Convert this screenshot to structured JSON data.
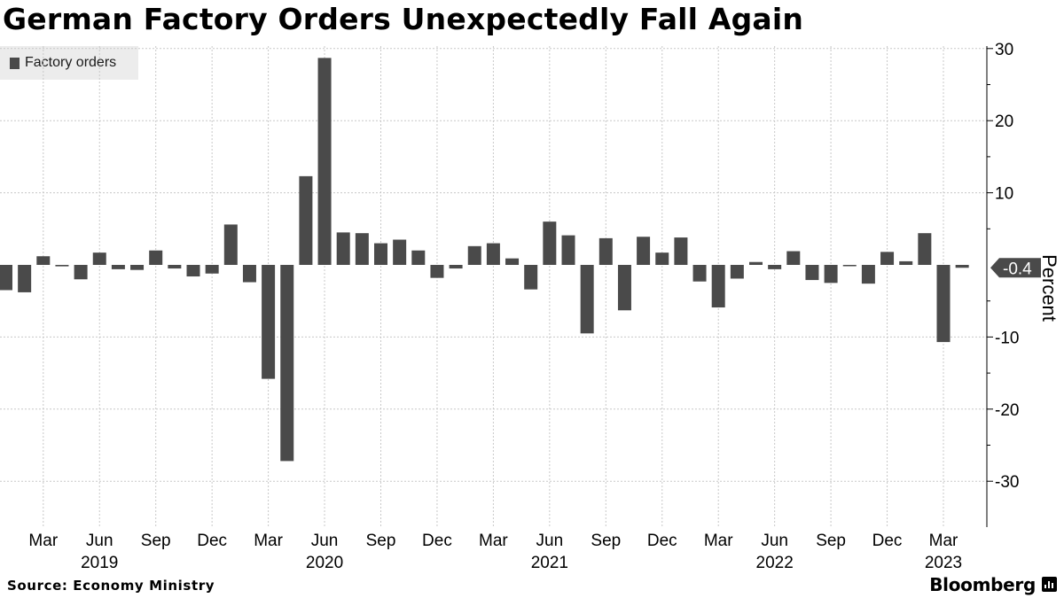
{
  "title": "German Factory Orders Unexpectedly Fall Again",
  "legend": {
    "label": "Factory orders",
    "color": "#4a4a4a"
  },
  "source": "Source: Economy Ministry",
  "brand": "Bloomberg",
  "chart_data": {
    "type": "bar",
    "title": "German Factory Orders Unexpectedly Fall Again",
    "ylabel": "Percent",
    "ylim": [
      -33.5,
      34
    ],
    "yticks": [
      30,
      20,
      10,
      -10,
      -20,
      -30
    ],
    "y_axis_side": "right",
    "grid": true,
    "legend_position": "top-left",
    "last_value_label": "-0.4",
    "x_tick_labels": [
      "Mar",
      "Jun",
      "Sep",
      "Dec",
      "Mar",
      "Jun",
      "Sep",
      "Dec",
      "Mar",
      "Jun",
      "Sep",
      "Dec",
      "Mar",
      "Jun",
      "Sep",
      "Dec",
      "Mar"
    ],
    "x_year_labels": [
      "2019",
      "2020",
      "2021",
      "2022",
      "2023"
    ],
    "series": [
      {
        "name": "Factory orders",
        "color": "#4a4a4a",
        "categories": [
          "2019-01",
          "2019-02",
          "2019-03",
          "2019-04",
          "2019-05",
          "2019-06",
          "2019-07",
          "2019-08",
          "2019-09",
          "2019-10",
          "2019-11",
          "2019-12",
          "2020-01",
          "2020-02",
          "2020-03",
          "2020-04",
          "2020-05",
          "2020-06",
          "2020-07",
          "2020-08",
          "2020-09",
          "2020-10",
          "2020-11",
          "2020-12",
          "2021-01",
          "2021-02",
          "2021-03",
          "2021-04",
          "2021-05",
          "2021-06",
          "2021-07",
          "2021-08",
          "2021-09",
          "2021-10",
          "2021-11",
          "2021-12",
          "2022-01",
          "2022-02",
          "2022-03",
          "2022-04",
          "2022-05",
          "2022-06",
          "2022-07",
          "2022-08",
          "2022-09",
          "2022-10",
          "2022-11",
          "2022-12",
          "2023-01",
          "2023-02",
          "2023-03",
          "2023-04"
        ],
        "values": [
          -3.5,
          -3.8,
          1.2,
          -0.2,
          -2.0,
          1.7,
          -0.6,
          -0.7,
          2.0,
          -0.5,
          -1.6,
          -1.2,
          5.6,
          -2.4,
          -15.8,
          -27.2,
          12.3,
          28.7,
          4.5,
          4.4,
          3.0,
          3.5,
          2.0,
          -1.8,
          -0.5,
          2.6,
          3.0,
          0.9,
          -3.4,
          6.0,
          4.1,
          -9.5,
          3.7,
          -6.3,
          3.9,
          1.7,
          3.8,
          -2.3,
          -5.9,
          -1.9,
          0.4,
          -0.6,
          1.9,
          -2.1,
          -2.5,
          -0.1,
          -2.6,
          1.8,
          0.5,
          4.4,
          -10.7,
          -0.4
        ]
      }
    ]
  }
}
